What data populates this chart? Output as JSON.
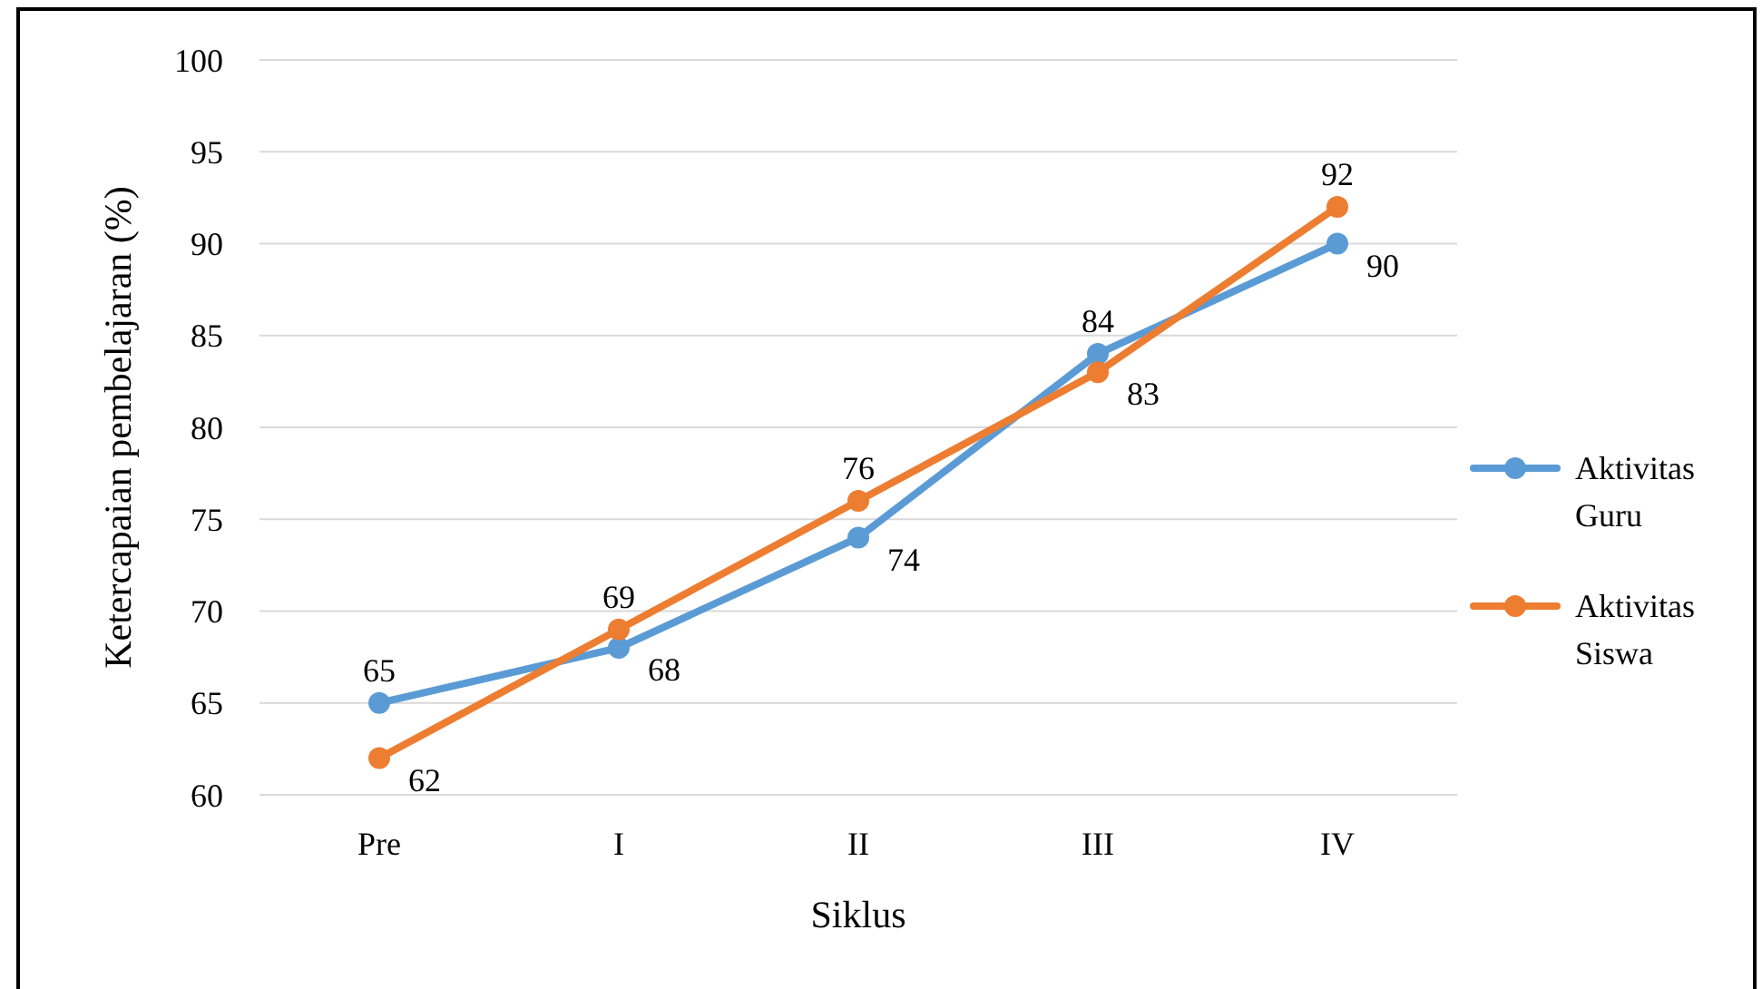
{
  "chart_data": {
    "type": "line",
    "xlabel": "Siklus",
    "ylabel": "Ketercapaian pembelajaran (%)",
    "categories": [
      "Pre",
      "I",
      "II",
      "III",
      "IV"
    ],
    "series": [
      {
        "name": "Aktivitas Guru",
        "color": "#5b9bd5",
        "values": [
          65,
          68,
          74,
          84,
          90
        ]
      },
      {
        "name": "Aktivitas Siswa",
        "color": "#ed7d31",
        "values": [
          62,
          69,
          76,
          83,
          92
        ]
      }
    ],
    "ylim": [
      60,
      100
    ],
    "yticks": [
      60,
      65,
      70,
      75,
      80,
      85,
      90,
      95,
      100
    ],
    "grid": "y",
    "legend": "right",
    "marker": "circle",
    "data_labels": true
  }
}
